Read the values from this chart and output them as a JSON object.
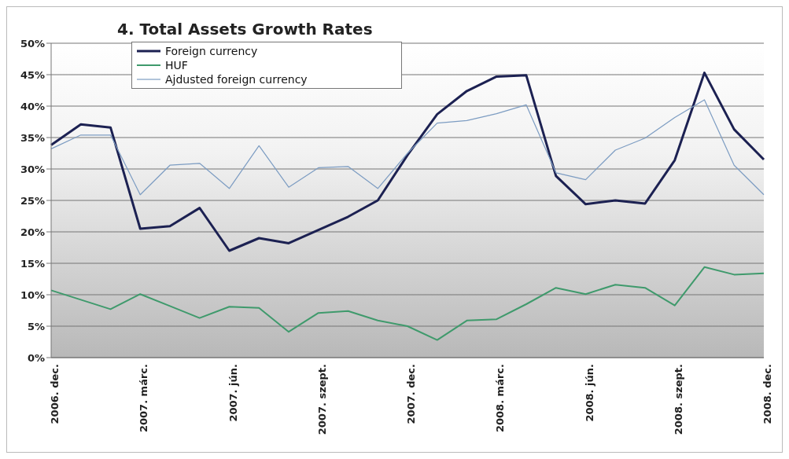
{
  "chart_data": {
    "type": "line",
    "title": "4. Total Assets Growth Rates",
    "categories": [
      "2006. dec.",
      null,
      null,
      "2007. márc.",
      null,
      null,
      "2007. jún.",
      null,
      null,
      "2007. szept.",
      null,
      null,
      "2007. dec.",
      null,
      null,
      "2008. márc.",
      null,
      null,
      "2008. jún.",
      null,
      null,
      "2008. szept.",
      null,
      null,
      "2008. dec."
    ],
    "series": [
      {
        "name": "Foreign currency",
        "color": "#1c2152",
        "values": [
          33.8,
          37.1,
          36.6,
          20.5,
          20.9,
          23.8,
          17.0,
          19.0,
          18.2,
          20.3,
          22.4,
          25.0,
          32.2,
          38.7,
          42.4,
          44.7,
          44.9,
          28.9,
          24.4,
          25.0,
          24.5,
          31.4,
          45.3,
          36.3,
          31.5
        ]
      },
      {
        "name": "HUF",
        "color": "#3f9a6c",
        "values": [
          10.7,
          9.2,
          7.7,
          10.1,
          8.2,
          6.3,
          8.1,
          7.9,
          4.1,
          7.1,
          7.4,
          5.9,
          5.0,
          2.8,
          5.9,
          6.1,
          8.5,
          11.1,
          10.1,
          11.6,
          11.1,
          8.3,
          14.4,
          13.2,
          13.4
        ]
      },
      {
        "name": "Ajdusted foreign currency",
        "color": "#7c9cc2",
        "values": [
          33.2,
          35.4,
          35.4,
          25.9,
          30.6,
          30.9,
          26.9,
          33.7,
          27.1,
          30.2,
          30.4,
          26.9,
          32.5,
          37.3,
          37.7,
          38.8,
          40.2,
          29.4,
          28.3,
          33.0,
          34.9,
          38.2,
          41.0,
          30.6,
          25.9
        ]
      }
    ],
    "ylim": [
      0,
      50
    ],
    "yticks": [
      {
        "value": 0,
        "label": "0%"
      },
      {
        "value": 5,
        "label": "5%"
      },
      {
        "value": 10,
        "label": "10%"
      },
      {
        "value": 15,
        "label": "15%"
      },
      {
        "value": 20,
        "label": "20%"
      },
      {
        "value": 25,
        "label": "25%"
      },
      {
        "value": 30,
        "label": "30%"
      },
      {
        "value": 35,
        "label": "35%"
      },
      {
        "value": 40,
        "label": "40%"
      },
      {
        "value": 45,
        "label": "45%"
      },
      {
        "value": 50,
        "label": "50%"
      }
    ],
    "grid": "y",
    "legend": "top left",
    "marker": "none",
    "line_style": "solid"
  }
}
